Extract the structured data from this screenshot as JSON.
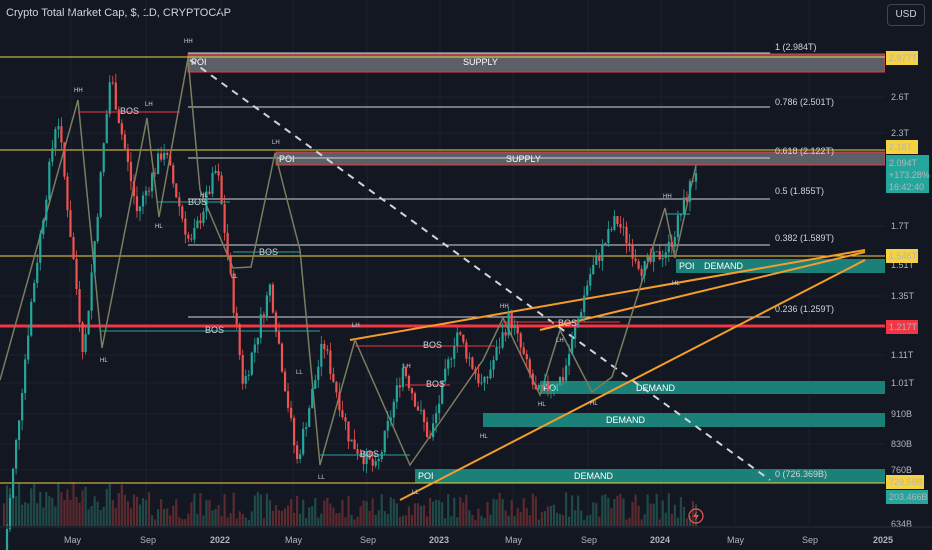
{
  "header": {
    "title": "Crypto Total Market Cap, $, 1D, CRYPTOCAP",
    "currency_button": "USD"
  },
  "price_box": {
    "price": "2.094T",
    "change": "+173.28%",
    "countdown": "16:42:40"
  },
  "colors": {
    "background": "#131722",
    "candle_up": "#26a69a",
    "candle_down": "#ef5350",
    "trend_orange": "#f59d2a",
    "yellow_line": "#f5d242",
    "red_line": "#f23645",
    "demand_fill": "#1b8077",
    "supply_fill": "#5d5f66",
    "price_green": "#26a69a"
  },
  "chart_data": {
    "type": "candlestick",
    "symbol": "CRYPTOCAP:TOTAL",
    "y_scale": "log",
    "x_ticks": [
      "May",
      "Sep",
      "2022",
      "May",
      "Sep",
      "2023",
      "May",
      "Sep",
      "2024",
      "May",
      "Sep",
      "2025"
    ],
    "y_ticks": [
      "2.6T",
      "2.3T",
      "1.7T",
      "1.51T",
      "1.35T",
      "1.11T",
      "1.01T",
      "910B",
      "830B",
      "760B",
      "634B"
    ],
    "price_labels": [
      "2.977T",
      "2.18T",
      "1.546T",
      "1.217T",
      "729.59B",
      "203.466B"
    ],
    "fib_levels": [
      {
        "label": "1 (2.984T)",
        "value": 2.984
      },
      {
        "label": "0.786 (2.501T)",
        "value": 2.501
      },
      {
        "label": "0.618 (2.122T)",
        "value": 2.122
      },
      {
        "label": "0.5 (1.855T)",
        "value": 1.855
      },
      {
        "label": "0.382 (1.589T)",
        "value": 1.589
      },
      {
        "label": "0.236 (1.259T)",
        "value": 1.259
      },
      {
        "label": "0 (726.369B)",
        "value": 0.7264
      }
    ],
    "zones": [
      {
        "kind": "SUPPLY",
        "poi": "POI"
      },
      {
        "kind": "SUPPLY",
        "poi": "POI"
      },
      {
        "kind": "DEMAND",
        "poi": "POI"
      },
      {
        "kind": "DEMAND",
        "poi": "POI"
      },
      {
        "kind": "DEMAND",
        "poi": ""
      },
      {
        "kind": "DEMAND",
        "poi": "POI"
      }
    ],
    "structure_labels": [
      "HH",
      "HH",
      "LH",
      "HL",
      "LH",
      "HL",
      "LL",
      "HL",
      "LL",
      "LL",
      "LH",
      "LH",
      "HL",
      "LL",
      "HH",
      "HL",
      "LH",
      "HL",
      "HH",
      "HL"
    ],
    "bos_labels": [
      "BOS",
      "BOS",
      "BOS",
      "BOS",
      "BOS",
      "BOS",
      "BOS",
      "BOS"
    ],
    "series": [
      {
        "points": [
          0.55,
          1.3,
          2.55,
          1.1,
          2.9,
          1.8,
          2.25,
          1.6,
          2.1,
          0.99,
          1.4,
          0.76,
          1.15,
          0.82,
          0.74,
          1.06,
          0.82,
          1.2,
          0.98,
          1.26,
          0.96,
          1.02,
          1.45,
          1.76,
          1.48,
          1.6,
          2.09
        ]
      }
    ]
  }
}
